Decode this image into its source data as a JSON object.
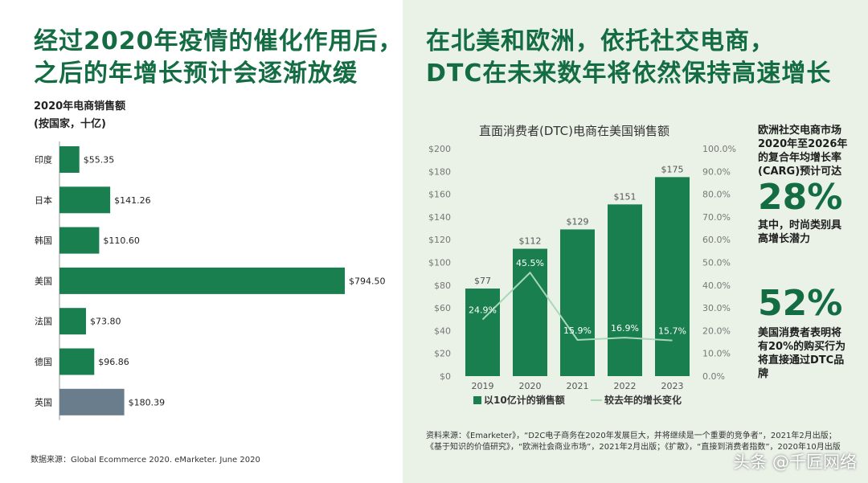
{
  "left": {
    "headline": [
      "经过2020年疫情的催化作用后，",
      "之后的年增长预计会逐渐放缓"
    ],
    "chart_title": "2020年电商销售额",
    "chart_unit": "(按国家，十亿)",
    "source": "数据来源：Global Ecommerce 2020. eMarketer. June 2020"
  },
  "right": {
    "headline": [
      "在北美和欧洲，依托社交电商，",
      "DTC在未来数年将依然保持高速增长"
    ],
    "stat1_text": [
      "欧洲社交电商市场",
      "2020年至2026年",
      "的复合年均增长率",
      "(CARG)预计可达"
    ],
    "stat1_value": "28%",
    "stat1_note": [
      "其中，时尚类别具",
      "高增长潜力"
    ],
    "stat2_value": "52%",
    "stat2_text": [
      "美国消费者表明将",
      "有20%的购买行为",
      "将直接通过DTC品",
      "牌"
    ],
    "source": "资料来源：《Emarketer》，“D2C电子商务在2020年发展巨大，并将继续是一个重要的竞争者”，2021年2月出版；《基于知识的价值研究》，“欧洲社会商业市场”，2021年2月出版；《扩散》，“直接到消费者指数”，2020年10月出版"
  },
  "watermark": "头条 @千匠网络",
  "colors": {
    "accent": "#146c43",
    "bar_green": "#1a7f4f",
    "bar_gray": "#6a7d8c",
    "right_bg": "#eaf2e8",
    "line": "#a8d8b8"
  },
  "chart_data": [
    {
      "type": "bar",
      "orientation": "horizontal",
      "title": "2020年电商销售额",
      "subtitle": "(按国家，十亿)",
      "categories": [
        "印度",
        "日本",
        "韩国",
        "美国",
        "法国",
        "德国",
        "英国"
      ],
      "values": [
        55.35,
        141.26,
        110.6,
        794.5,
        73.8,
        96.86,
        180.39
      ],
      "labels": [
        "$55.35",
        "$141.26",
        "$110.60",
        "$794.50",
        "$73.80",
        "$96.86",
        "$180.39"
      ],
      "highlight_category": "英国"
    },
    {
      "type": "bar",
      "title": "直面消费者(DTC)电商在美国销售额",
      "categories": [
        "2019",
        "2020",
        "2021",
        "2022",
        "2023"
      ],
      "series": [
        {
          "name": "以10亿计的销售额",
          "type": "bar",
          "values": [
            77,
            112,
            129,
            151,
            175
          ],
          "labels": [
            "$77",
            "$112",
            "$129",
            "$151",
            "$175"
          ]
        },
        {
          "name": "较去年的增长变化",
          "type": "line",
          "axis": "right",
          "values": [
            24.9,
            45.5,
            15.9,
            16.9,
            15.7
          ],
          "labels": [
            "24.9%",
            "45.5%",
            "15.9%",
            "16.9%",
            "15.7%"
          ]
        }
      ],
      "y_left": {
        "min": 0,
        "max": 200,
        "step": 20,
        "ticks": [
          "$0",
          "$20",
          "$40",
          "$60",
          "$80",
          "$100",
          "$120",
          "$140",
          "$160",
          "$180",
          "$200"
        ]
      },
      "y_right": {
        "min": 0,
        "max": 100,
        "step": 10,
        "ticks": [
          "0.0%",
          "10.0%",
          "20.0%",
          "30.0%",
          "40.0%",
          "50.0%",
          "60.0%",
          "70.0%",
          "80.0%",
          "90.0%",
          "100.0%"
        ]
      },
      "legend_position": "bottom"
    }
  ]
}
